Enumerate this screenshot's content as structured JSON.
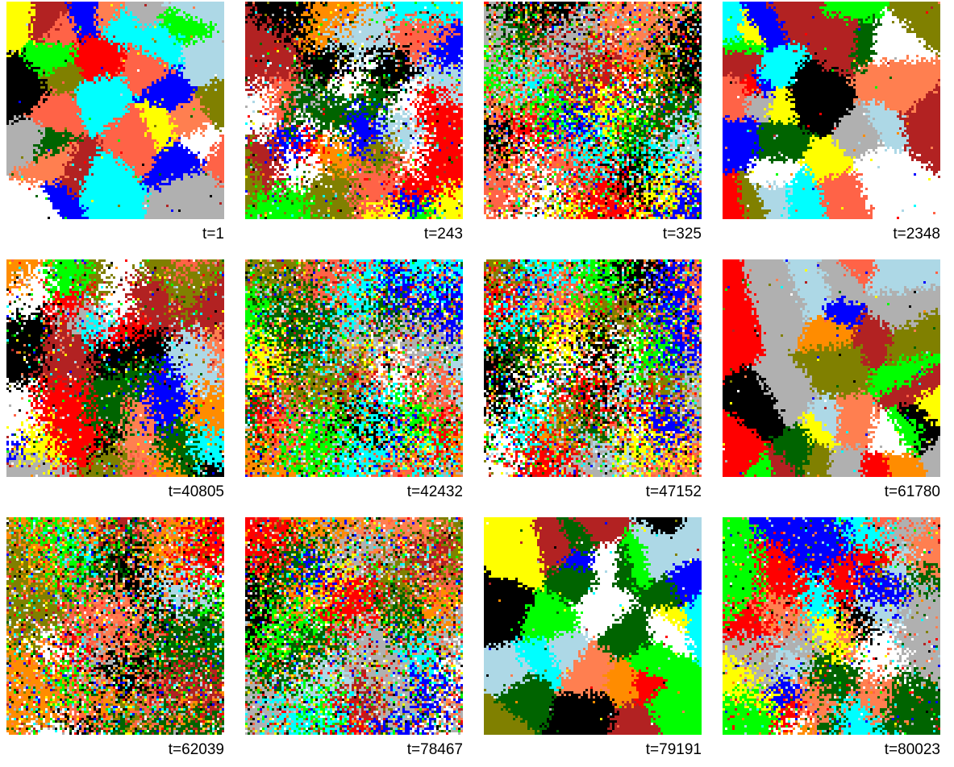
{
  "palette": [
    "#ff0000",
    "#0000ff",
    "#ffff00",
    "#00ff00",
    "#000000",
    "#ffffff",
    "#b0b0b0",
    "#00ffff",
    "#ff8c00",
    "#006400",
    "#b22222",
    "#add8e6",
    "#ff6347",
    "#808000",
    "#ff7f50"
  ],
  "panels": [
    {
      "label": "t=1",
      "state": "coarse"
    },
    {
      "label": "t=243",
      "state": "mixed"
    },
    {
      "label": "t=325",
      "state": "noisy"
    },
    {
      "label": "t=2348",
      "state": "coarse"
    },
    {
      "label": "t=40805",
      "state": "mixed"
    },
    {
      "label": "t=42432",
      "state": "noisy"
    },
    {
      "label": "t=47152",
      "state": "noisy"
    },
    {
      "label": "t=61780",
      "state": "coarse"
    },
    {
      "label": "t=62039",
      "state": "noisy"
    },
    {
      "label": "t=78467",
      "state": "noisy"
    },
    {
      "label": "t=79191",
      "state": "coarse"
    },
    {
      "label": "t=80023",
      "state": "mixed"
    }
  ]
}
